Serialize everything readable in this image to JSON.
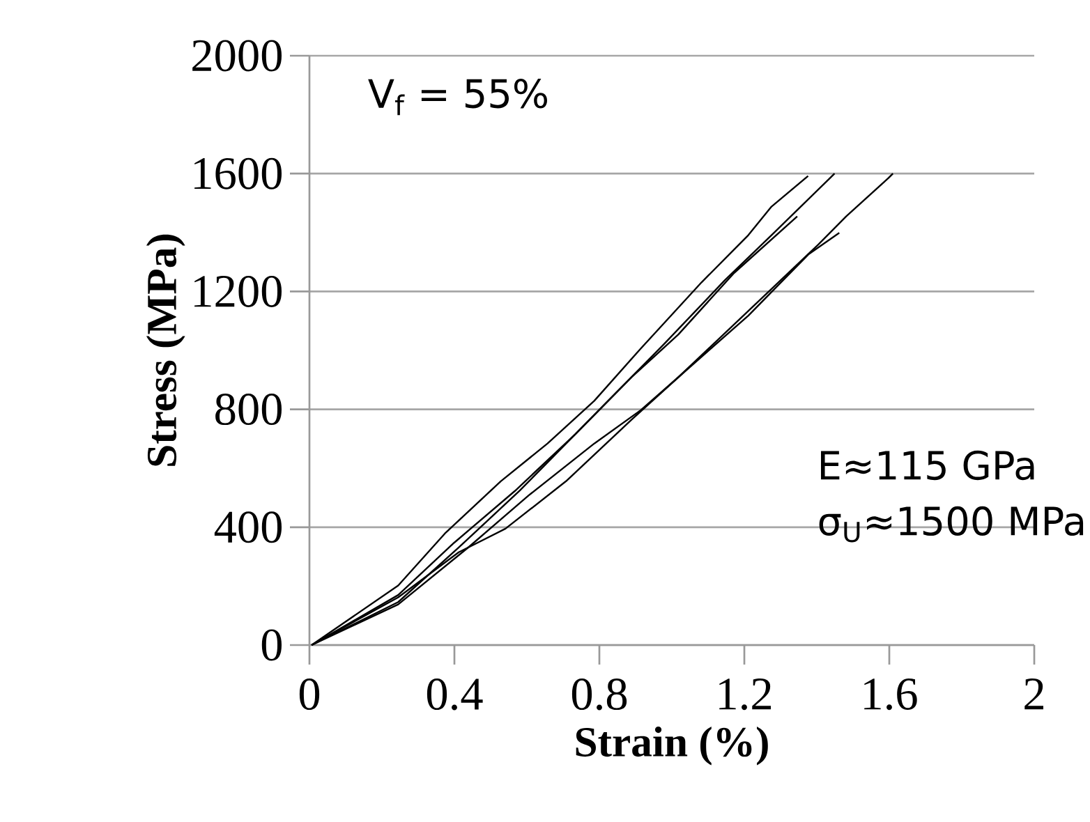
{
  "chart_data": {
    "type": "line",
    "xlabel": "Strain (%)",
    "ylabel": "Stress (MPa)",
    "annotations": [
      "V$_{f}$ = 55%",
      "E≈115 GPa",
      "σ$_{U}$≈1500 MPa"
    ],
    "xlim": [
      0,
      2
    ],
    "ylim": [
      0,
      2000
    ],
    "xticks": [
      0,
      0.4,
      0.8,
      1.2,
      1.6,
      2
    ],
    "yticks": [
      0,
      400,
      800,
      1200,
      1600,
      2000
    ],
    "grid": "y",
    "marker": "none",
    "line_style": "solid",
    "series": [
      {
        "color": "#000000",
        "x": [
          0.006,
          0.245,
          0.374,
          0.528,
          0.657,
          0.786,
          0.914,
          1.082,
          1.211,
          1.275,
          1.376
        ],
        "values": [
          0,
          202,
          379,
          556,
          684,
          829,
          1006,
          1231,
          1391,
          1488,
          1592
        ]
      },
      {
        "color": "#000000",
        "x": [
          0.006,
          0.245,
          0.399,
          0.567,
          0.734,
          0.824,
          0.979,
          1.146,
          1.275,
          1.449
        ],
        "values": [
          0,
          170,
          347,
          523,
          716,
          829,
          1022,
          1238,
          1391,
          1600
        ]
      },
      {
        "color": "#000000",
        "x": [
          0.006,
          0.245,
          0.412,
          0.58,
          0.734,
          0.889,
          1.018,
          1.172,
          1.346
        ],
        "values": [
          0,
          146,
          331,
          524,
          716,
          909,
          1054,
          1263,
          1455
        ]
      },
      {
        "color": "#000000",
        "x": [
          0.006,
          0.245,
          0.412,
          0.541,
          0.708,
          0.889,
          1.018,
          1.211,
          1.404,
          1.481,
          1.597,
          1.61
        ],
        "values": [
          0,
          162,
          315,
          395,
          556,
          765,
          909,
          1134,
          1359,
          1455,
          1584,
          1600
        ]
      },
      {
        "color": "#000000",
        "x": [
          0.006,
          0.245,
          0.438,
          0.605,
          0.786,
          0.914,
          1.018,
          1.211,
          1.378,
          1.462
        ],
        "values": [
          0,
          138,
          331,
          508,
          684,
          797,
          909,
          1118,
          1327,
          1399
        ]
      }
    ]
  }
}
